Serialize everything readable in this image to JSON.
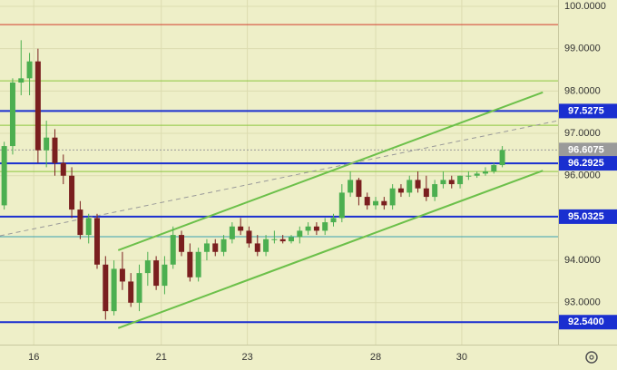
{
  "chart_data": {
    "type": "candlestick",
    "colors": {
      "up": "#4caf50",
      "down": "#7a1f1f",
      "background": "#eeefc8",
      "grid": "#dcdcb0"
    },
    "xlim": [
      -0.5,
      65.6
    ],
    "ylim": [
      92.01,
      100.15
    ],
    "xticks": [
      {
        "value": 3.5,
        "label": "16"
      },
      {
        "value": 18.6,
        "label": "21"
      },
      {
        "value": 28.8,
        "label": "23"
      },
      {
        "value": 44.0,
        "label": "28"
      },
      {
        "value": 54.2,
        "label": "30"
      }
    ],
    "yticks": [
      {
        "value": 100,
        "label": "100.0000"
      },
      {
        "value": 99,
        "label": "99.0000"
      },
      {
        "value": 98,
        "label": "98.0000"
      },
      {
        "value": 97,
        "label": "97.0000"
      },
      {
        "value": 96,
        "label": "96.0000"
      },
      {
        "value": 94,
        "label": "94.0000"
      },
      {
        "value": 93,
        "label": "93.0000"
      }
    ],
    "ohlc": [
      [
        95.3,
        96.8,
        95.2,
        96.7
      ],
      [
        96.7,
        98.3,
        96.5,
        98.2
      ],
      [
        98.2,
        99.2,
        97.9,
        98.3
      ],
      [
        98.3,
        98.9,
        97.9,
        98.7
      ],
      [
        98.7,
        99.0,
        96.3,
        96.6
      ],
      [
        96.6,
        97.3,
        96.2,
        96.9
      ],
      [
        96.9,
        97.1,
        96.0,
        96.3
      ],
      [
        96.3,
        96.5,
        95.8,
        96.0
      ],
      [
        96.0,
        96.2,
        95.0,
        95.2
      ],
      [
        95.2,
        95.4,
        94.5,
        94.6
      ],
      [
        94.6,
        95.1,
        94.4,
        95.0
      ],
      [
        95.0,
        95.1,
        93.8,
        93.9
      ],
      [
        93.9,
        94.1,
        92.6,
        92.8
      ],
      [
        92.8,
        94.0,
        92.7,
        93.8
      ],
      [
        93.8,
        94.2,
        93.3,
        93.5
      ],
      [
        93.5,
        93.7,
        92.9,
        93.0
      ],
      [
        93.0,
        93.9,
        92.8,
        93.7
      ],
      [
        93.7,
        94.2,
        93.4,
        94.0
      ],
      [
        94.0,
        94.1,
        93.3,
        93.4
      ],
      [
        93.4,
        94.1,
        93.2,
        93.9
      ],
      [
        93.9,
        94.8,
        93.8,
        94.6
      ],
      [
        94.6,
        94.7,
        94.1,
        94.2
      ],
      [
        94.2,
        94.4,
        93.5,
        93.6
      ],
      [
        93.6,
        94.3,
        93.5,
        94.2
      ],
      [
        94.2,
        94.5,
        94.0,
        94.4
      ],
      [
        94.4,
        94.5,
        94.1,
        94.2
      ],
      [
        94.2,
        94.6,
        94.1,
        94.5
      ],
      [
        94.5,
        94.9,
        94.4,
        94.8
      ],
      [
        94.8,
        95.0,
        94.6,
        94.7
      ],
      [
        94.7,
        94.8,
        94.3,
        94.4
      ],
      [
        94.4,
        94.6,
        94.1,
        94.2
      ],
      [
        94.2,
        94.6,
        94.1,
        94.5
      ],
      [
        94.5,
        94.7,
        94.4,
        94.5
      ],
      [
        94.5,
        94.6,
        94.4,
        94.45
      ],
      [
        94.45,
        94.6,
        94.4,
        94.55
      ],
      [
        94.55,
        94.8,
        94.4,
        94.7
      ],
      [
        94.7,
        94.9,
        94.6,
        94.8
      ],
      [
        94.8,
        94.9,
        94.6,
        94.7
      ],
      [
        94.7,
        95.0,
        94.6,
        94.9
      ],
      [
        94.9,
        95.1,
        94.8,
        95.0
      ],
      [
        95.0,
        95.8,
        94.9,
        95.6
      ],
      [
        95.6,
        96.1,
        95.5,
        95.9
      ],
      [
        95.9,
        95.95,
        95.3,
        95.5
      ],
      [
        95.5,
        95.6,
        95.2,
        95.3
      ],
      [
        95.3,
        95.5,
        95.2,
        95.4
      ],
      [
        95.4,
        95.5,
        95.2,
        95.3
      ],
      [
        95.3,
        95.8,
        95.2,
        95.7
      ],
      [
        95.7,
        95.8,
        95.5,
        95.6
      ],
      [
        95.6,
        96.0,
        95.5,
        95.9
      ],
      [
        95.9,
        96.1,
        95.6,
        95.7
      ],
      [
        95.7,
        96.0,
        95.4,
        95.5
      ],
      [
        95.5,
        95.9,
        95.4,
        95.8
      ],
      [
        95.8,
        96.1,
        95.7,
        95.9
      ],
      [
        95.9,
        96.0,
        95.7,
        95.8
      ],
      [
        95.8,
        96.0,
        95.7,
        96.0
      ],
      [
        96.0,
        96.1,
        95.9,
        96.0
      ],
      [
        96.0,
        96.1,
        95.95,
        96.05
      ],
      [
        96.05,
        96.2,
        96.0,
        96.1
      ],
      [
        96.1,
        96.3,
        96.05,
        96.25
      ],
      [
        96.25,
        96.7,
        96.2,
        96.6075
      ]
    ],
    "levels": [
      {
        "value": 99.57,
        "color": "#d23c2c",
        "width": 1
      },
      {
        "value": 98.24,
        "color": "#8cc63f",
        "width": 1
      },
      {
        "value": 97.5275,
        "label": "97.5275",
        "color": "#1a2fd0",
        "width": 2
      },
      {
        "value": 97.19,
        "color": "#8cc63f",
        "width": 1
      },
      {
        "value": 96.6075,
        "label": "96.6075",
        "color": "#9a9a9a",
        "width": 1,
        "dash": true
      },
      {
        "value": 96.2925,
        "label": "96.2925",
        "color": "#1a2fd0",
        "width": 2
      },
      {
        "value": 96.1,
        "color": "#8cc63f",
        "width": 1
      },
      {
        "value": 95.0325,
        "label": "95.0325",
        "color": "#1a2fd0",
        "width": 2
      },
      {
        "value": 94.56,
        "color": "#3aa0b0",
        "width": 1
      },
      {
        "value": 92.54,
        "label": "92.5400",
        "color": "#1a2fd0",
        "width": 2
      }
    ],
    "trendlines": [
      {
        "x": [
          13.5,
          63.8
        ],
        "y": [
          94.24,
          97.97
        ],
        "color": "#6cc04a",
        "width": 2
      },
      {
        "x": [
          13.5,
          63.8
        ],
        "y": [
          92.4,
          96.12
        ],
        "color": "#6cc04a",
        "width": 2
      },
      {
        "x": [
          -0.5,
          65.6
        ],
        "y": [
          94.58,
          97.3
        ],
        "color": "#999999",
        "width": 1,
        "dash": true
      }
    ]
  }
}
